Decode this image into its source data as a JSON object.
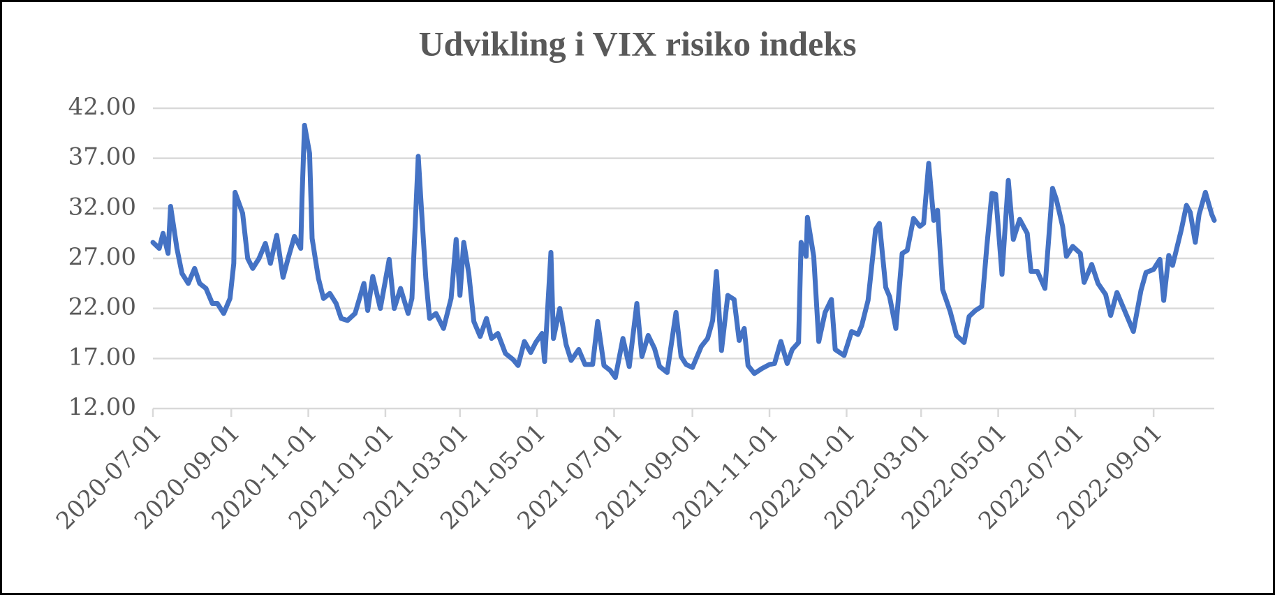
{
  "chart_data": {
    "type": "line",
    "title": "Udvikling i VIX risiko indeks",
    "x": [
      "2020-07-01",
      "2020-07-06",
      "2020-07-09",
      "2020-07-13",
      "2020-07-15",
      "2020-07-20",
      "2020-07-24",
      "2020-07-29",
      "2020-08-03",
      "2020-08-07",
      "2020-08-12",
      "2020-08-17",
      "2020-08-21",
      "2020-08-26",
      "2020-08-31",
      "2020-09-03",
      "2020-09-04",
      "2020-09-10",
      "2020-09-14",
      "2020-09-18",
      "2020-09-23",
      "2020-09-28",
      "2020-10-02",
      "2020-10-07",
      "2020-10-12",
      "2020-10-16",
      "2020-10-21",
      "2020-10-26",
      "2020-10-27",
      "2020-10-29",
      "2020-11-02",
      "2020-11-04",
      "2020-11-09",
      "2020-11-13",
      "2020-11-18",
      "2020-11-23",
      "2020-11-27",
      "2020-12-02",
      "2020-12-08",
      "2020-12-15",
      "2020-12-18",
      "2020-12-22",
      "2020-12-28",
      "2021-01-04",
      "2021-01-08",
      "2021-01-13",
      "2021-01-19",
      "2021-01-22",
      "2021-01-27",
      "2021-01-29",
      "2021-02-02",
      "2021-02-05",
      "2021-02-10",
      "2021-02-16",
      "2021-02-22",
      "2021-02-26",
      "2021-03-01",
      "2021-03-04",
      "2021-03-08",
      "2021-03-12",
      "2021-03-17",
      "2021-03-22",
      "2021-03-26",
      "2021-03-31",
      "2021-04-06",
      "2021-04-12",
      "2021-04-16",
      "2021-04-21",
      "2021-04-26",
      "2021-04-30",
      "2021-05-05",
      "2021-05-07",
      "2021-05-12",
      "2021-05-14",
      "2021-05-19",
      "2021-05-24",
      "2021-05-28",
      "2021-06-03",
      "2021-06-08",
      "2021-06-14",
      "2021-06-18",
      "2021-06-23",
      "2021-06-28",
      "2021-07-02",
      "2021-07-08",
      "2021-07-13",
      "2021-07-19",
      "2021-07-23",
      "2021-07-28",
      "2021-08-02",
      "2021-08-06",
      "2021-08-12",
      "2021-08-19",
      "2021-08-23",
      "2021-08-27",
      "2021-09-01",
      "2021-09-08",
      "2021-09-13",
      "2021-09-17",
      "2021-09-20",
      "2021-09-24",
      "2021-09-29",
      "2021-10-04",
      "2021-10-08",
      "2021-10-12",
      "2021-10-15",
      "2021-10-20",
      "2021-10-26",
      "2021-11-01",
      "2021-11-05",
      "2021-11-10",
      "2021-11-15",
      "2021-11-19",
      "2021-11-24",
      "2021-11-26",
      "2021-11-30",
      "2021-12-01",
      "2021-12-06",
      "2021-12-10",
      "2021-12-15",
      "2021-12-20",
      "2021-12-23",
      "2021-12-30",
      "2022-01-05",
      "2022-01-10",
      "2022-01-13",
      "2022-01-18",
      "2022-01-24",
      "2022-01-27",
      "2022-02-01",
      "2022-02-04",
      "2022-02-09",
      "2022-02-14",
      "2022-02-18",
      "2022-02-23",
      "2022-02-28",
      "2022-03-03",
      "2022-03-07",
      "2022-03-11",
      "2022-03-14",
      "2022-03-18",
      "2022-03-24",
      "2022-03-29",
      "2022-04-04",
      "2022-04-08",
      "2022-04-13",
      "2022-04-18",
      "2022-04-22",
      "2022-04-26",
      "2022-04-29",
      "2022-05-04",
      "2022-05-09",
      "2022-05-13",
      "2022-05-18",
      "2022-05-24",
      "2022-05-27",
      "2022-06-01",
      "2022-06-07",
      "2022-06-13",
      "2022-06-16",
      "2022-06-21",
      "2022-06-24",
      "2022-06-29",
      "2022-07-05",
      "2022-07-08",
      "2022-07-14",
      "2022-07-19",
      "2022-07-25",
      "2022-07-29",
      "2022-08-03",
      "2022-08-09",
      "2022-08-16",
      "2022-08-22",
      "2022-08-26",
      "2022-09-01",
      "2022-09-06",
      "2022-09-09",
      "2022-09-13",
      "2022-09-16",
      "2022-09-23",
      "2022-09-27",
      "2022-09-30",
      "2022-10-04",
      "2022-10-07",
      "2022-10-12",
      "2022-10-17",
      "2022-10-19"
    ],
    "series": [
      {
        "color": "#4472c4",
        "values": [
          28.6,
          28,
          29.5,
          27.5,
          32.2,
          28,
          25.5,
          24.5,
          26,
          24.5,
          24,
          22.5,
          22.5,
          21.5,
          23,
          26.5,
          33.6,
          31.5,
          27,
          26,
          27,
          28.5,
          26.5,
          29.3,
          25.1,
          27,
          29.2,
          28,
          33,
          40.3,
          37.5,
          29,
          25,
          23,
          23.5,
          22.5,
          21,
          20.8,
          21.5,
          24.5,
          21.8,
          25.2,
          22,
          26.9,
          22,
          24,
          21.5,
          23,
          37.2,
          33,
          25,
          21,
          21.5,
          20,
          23,
          28.9,
          23.3,
          28.6,
          25.5,
          20.7,
          19.2,
          21,
          19,
          19.5,
          17.5,
          16.9,
          16.3,
          18.7,
          17.6,
          18.6,
          19.5,
          16.7,
          27.6,
          19,
          22,
          18.4,
          16.8,
          17.9,
          16.4,
          16.4,
          20.7,
          16.3,
          15.8,
          15.1,
          19,
          16.2,
          22.5,
          17.2,
          19.3,
          18,
          16.2,
          15.6,
          21.6,
          17.2,
          16.4,
          16.1,
          18.2,
          19,
          20.8,
          25.7,
          17.8,
          23.3,
          22.9,
          18.8,
          20,
          16.3,
          15.5,
          16,
          16.4,
          16.5,
          18.7,
          16.5,
          17.9,
          18.6,
          28.6,
          27.2,
          31.1,
          27.2,
          18.7,
          21.6,
          22.9,
          17.9,
          17.3,
          19.7,
          19.4,
          20.3,
          22.8,
          29.9,
          30.5,
          24.1,
          23.2,
          20,
          27.5,
          27.8,
          31,
          30.2,
          30.5,
          36.5,
          30.8,
          31.8,
          23.9,
          21.7,
          19.3,
          18.6,
          21.2,
          21.8,
          22.2,
          28.2,
          33.5,
          33.4,
          25.4,
          34.8,
          28.9,
          30.9,
          29.5,
          25.7,
          25.7,
          24,
          34,
          32.9,
          30.2,
          27.2,
          28.2,
          27.5,
          24.6,
          26.4,
          24.5,
          23.4,
          21.3,
          23.6,
          21.8,
          19.7,
          23.8,
          25.6,
          25.9,
          26.9,
          22.8,
          27.3,
          26.3,
          29.9,
          32.3,
          31.6,
          28.6,
          31.4,
          33.6,
          31.4,
          30.8
        ]
      }
    ],
    "xlim": [
      "2020-07-01",
      "2022-10-19"
    ],
    "xticks": [
      "2020-07-01",
      "2020-09-01",
      "2020-11-01",
      "2021-01-01",
      "2021-03-01",
      "2021-05-01",
      "2021-07-01",
      "2021-09-01",
      "2021-11-01",
      "2022-01-01",
      "2022-03-01",
      "2022-05-01",
      "2022-07-01",
      "2022-09-01"
    ],
    "ylim": [
      12,
      42
    ],
    "yticks": [
      {
        "value": 12,
        "label": "12.00"
      },
      {
        "value": 17,
        "label": "17.00"
      },
      {
        "value": 22,
        "label": "22.00"
      },
      {
        "value": 27,
        "label": "27.00"
      },
      {
        "value": 32,
        "label": "32.00"
      },
      {
        "value": 37,
        "label": "37.00"
      },
      {
        "value": 42,
        "label": "42.00"
      }
    ],
    "grid": true
  }
}
